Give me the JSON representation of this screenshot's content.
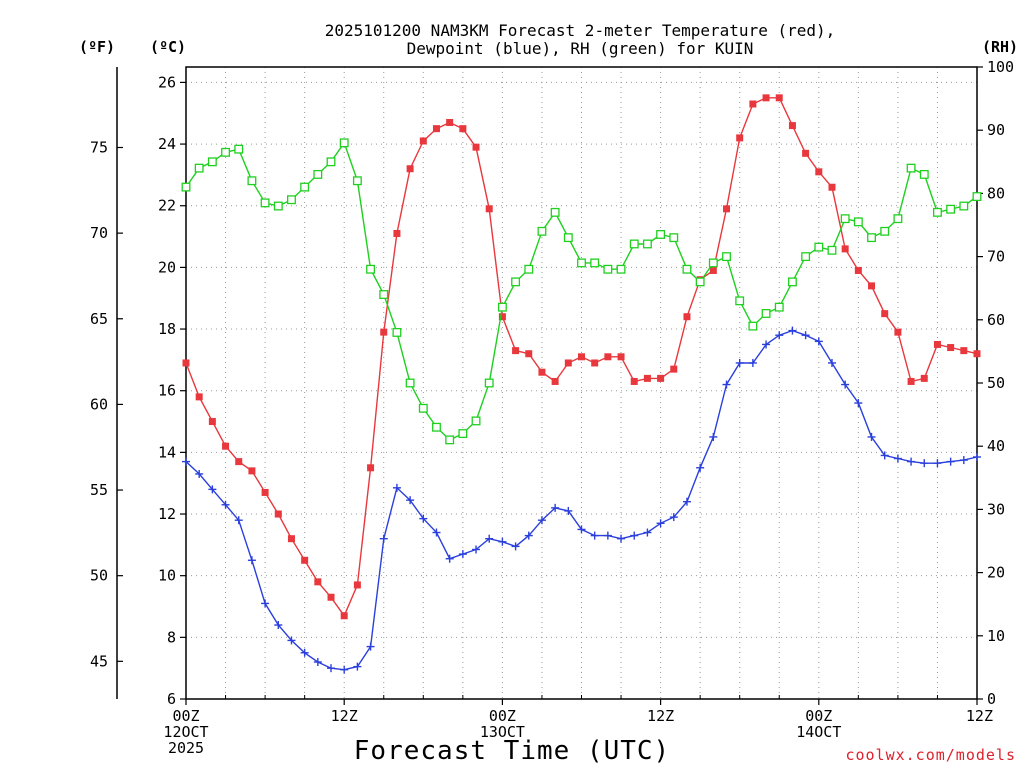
{
  "chart_data": {
    "type": "line",
    "title_lines": [
      "2025101200 NAM3KM Forecast 2-meter Temperature (red),",
      "Dewpoint (blue), RH (green) for KUIN"
    ],
    "xlabel": "Forecast Time (UTC)",
    "credit": "coolwx.com/models",
    "grid": true,
    "x_hours": [
      0,
      1,
      2,
      3,
      4,
      5,
      6,
      7,
      8,
      9,
      10,
      11,
      12,
      13,
      14,
      15,
      16,
      17,
      18,
      19,
      20,
      21,
      22,
      23,
      24,
      25,
      26,
      27,
      28,
      29,
      30,
      31,
      32,
      33,
      34,
      35,
      36,
      37,
      38,
      39,
      40,
      41,
      42,
      43,
      44,
      45,
      46,
      47,
      48,
      49,
      50,
      51,
      52,
      53,
      54,
      55,
      56,
      57,
      58,
      59,
      60
    ],
    "xlim": [
      0,
      60
    ],
    "x_ticks": [
      {
        "hour": 0,
        "lines": [
          "00Z",
          "12OCT",
          "2025"
        ]
      },
      {
        "hour": 12,
        "lines": [
          "12Z"
        ]
      },
      {
        "hour": 24,
        "lines": [
          "00Z",
          "13OCT"
        ]
      },
      {
        "hour": 36,
        "lines": [
          "12Z"
        ]
      },
      {
        "hour": 48,
        "lines": [
          "00Z",
          "14OCT"
        ]
      },
      {
        "hour": 60,
        "lines": [
          "12Z"
        ]
      }
    ],
    "axes": {
      "celsius": {
        "unit_label": "(ºC)",
        "ylim": [
          6,
          26.5
        ],
        "ticks": [
          6,
          8,
          10,
          12,
          14,
          16,
          18,
          20,
          22,
          24,
          26
        ]
      },
      "fahrenheit": {
        "unit_label": "(ºF)",
        "ticks": [
          45,
          50,
          55,
          60,
          65,
          70,
          75
        ]
      },
      "rh": {
        "unit_label": "(RH)",
        "ylim": [
          0,
          100
        ],
        "ticks": [
          0,
          10,
          20,
          30,
          40,
          50,
          60,
          70,
          80,
          90,
          100
        ]
      }
    },
    "series": [
      {
        "name": "2-meter Temperature",
        "axis": "celsius",
        "color": "#e8383d",
        "marker": "filled-square",
        "values": [
          16.9,
          15.8,
          15.0,
          14.2,
          13.7,
          13.4,
          12.7,
          12.0,
          11.2,
          10.5,
          9.8,
          9.3,
          8.7,
          9.7,
          13.5,
          17.9,
          21.1,
          23.2,
          24.1,
          24.5,
          24.7,
          24.5,
          23.9,
          21.9,
          18.4,
          17.3,
          17.2,
          16.6,
          16.3,
          16.9,
          17.1,
          16.9,
          17.1,
          17.1,
          16.3,
          16.4,
          16.4,
          16.7,
          18.4,
          19.6,
          19.9,
          21.9,
          24.2,
          25.3,
          25.5,
          25.5,
          24.6,
          23.7,
          23.1,
          22.6,
          20.6,
          19.9,
          19.4,
          18.5,
          17.9,
          16.3,
          16.4,
          17.5,
          17.4,
          17.3,
          17.2
        ]
      },
      {
        "name": "Dewpoint",
        "axis": "celsius",
        "color": "#2a3fdc",
        "marker": "plus",
        "values": [
          13.7,
          13.3,
          12.8,
          12.3,
          11.8,
          10.5,
          9.1,
          8.4,
          7.9,
          7.5,
          7.2,
          7.0,
          6.95,
          7.05,
          7.7,
          11.2,
          12.85,
          12.45,
          11.85,
          11.4,
          10.55,
          10.7,
          10.85,
          11.2,
          11.1,
          10.95,
          11.3,
          11.8,
          12.2,
          12.1,
          11.5,
          11.3,
          11.3,
          11.2,
          11.3,
          11.4,
          11.7,
          11.9,
          12.4,
          13.5,
          14.5,
          16.2,
          16.9,
          16.9,
          17.5,
          17.8,
          17.95,
          17.8,
          17.6,
          16.9,
          16.2,
          15.6,
          14.5,
          13.9,
          13.8,
          13.7,
          13.65,
          13.65,
          13.7,
          13.75,
          13.85
        ]
      },
      {
        "name": "Relative Humidity",
        "axis": "rh",
        "color": "#1fd01f",
        "marker": "open-square",
        "values": [
          81,
          84,
          85,
          86.5,
          87,
          82,
          78.5,
          78,
          79,
          81,
          83,
          85,
          88,
          82,
          68,
          64,
          58,
          50,
          46,
          43,
          41,
          42,
          44,
          50,
          62,
          66,
          68,
          74,
          77,
          73,
          69,
          69,
          68,
          68,
          72,
          72,
          73.5,
          73,
          68,
          66,
          69,
          70,
          63,
          59,
          61,
          62,
          66,
          70,
          71.5,
          71,
          76,
          75.5,
          73,
          74,
          76,
          84,
          83,
          77,
          77.5,
          78,
          79.5
        ]
      }
    ]
  }
}
